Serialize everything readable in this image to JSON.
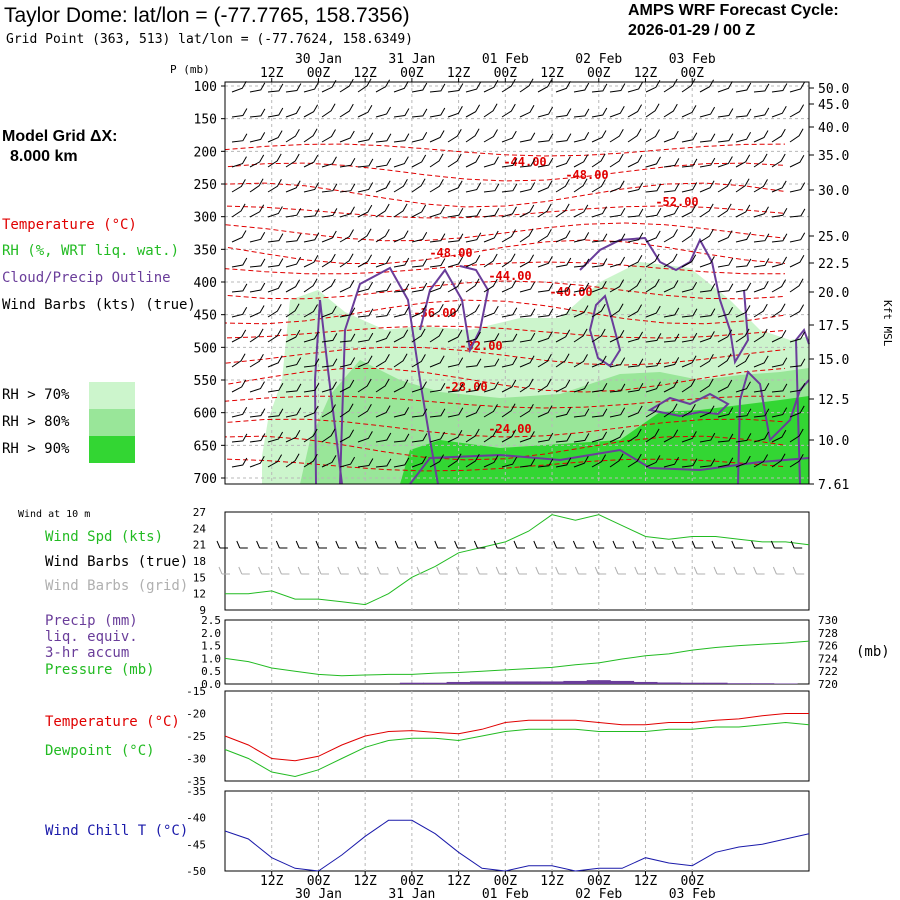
{
  "header": {
    "title": "Taylor Dome:  lat/lon = (-77.7765, 158.7356)",
    "grid_point": "Grid Point (363, 513) lat/lon = (-77.7624, 158.6349)",
    "cycle_line1": "AMPS WRF Forecast Cycle:",
    "cycle_line2": "2026-01-29 / 00  Z"
  },
  "sidebar": {
    "model_grid_line1": "Model Grid ΔX:",
    "model_grid_line2": "8.000 km",
    "legend_temperature": "Temperature (°C)",
    "legend_rh": "RH (%, WRT liq. wat.)",
    "legend_cloud": "Cloud/Precip Outline",
    "legend_wind": "Wind Barbs (kts) (true)",
    "rh_keys": [
      {
        "label": "RH > 70%",
        "color": "#ccf5cc"
      },
      {
        "label": "RH > 80%",
        "color": "#99e699"
      },
      {
        "label": "RH > 90%",
        "color": "#33d633"
      }
    ]
  },
  "colors": {
    "temperature": "#e00000",
    "rh_text": "#22bb22",
    "cloud": "#6a3d9a",
    "wind": "#000000",
    "wind_grid": "#b0b0b0",
    "windchill": "#1a1aaa",
    "grid": "#b8b8b8"
  },
  "chart_data": [
    {
      "type": "contour",
      "title": "Time-height section (temperature, RH, cloud outline, wind barbs)",
      "ylabel": "P (mb)",
      "y2label": "Kft MSL",
      "yticks": [
        "100",
        "150",
        "200",
        "250",
        "300",
        "350",
        "400",
        "450",
        "500",
        "550",
        "600",
        "650",
        "700"
      ],
      "y2ticks": [
        "50.0",
        "45.0",
        "40.0",
        "35.0",
        "30.0",
        "25.0",
        "22.5",
        "20.0",
        "17.5",
        "15.0",
        "12.5",
        "10.0",
        "7.61"
      ],
      "top_time_ticks": [
        "12Z",
        "00Z",
        "12Z",
        "00Z",
        "12Z",
        "00Z",
        "12Z",
        "00Z",
        "12Z",
        "00Z"
      ],
      "top_date_ticks": [
        "30 Jan",
        "31 Jan",
        "01 Feb",
        "02 Feb",
        "03 Feb"
      ],
      "contour_labels": [
        "-44.00",
        "-48.00",
        "-52.00",
        "-48.00",
        "-44.00",
        "-40.00",
        "-36.00",
        "-32.00",
        "-28.00",
        "-24.00"
      ]
    },
    {
      "type": "line",
      "title": "Wind at 10 m",
      "legend": [
        "Wind Spd (kts)",
        "Wind Barbs (true)",
        "Wind Barbs (grid)"
      ],
      "ylim": [
        9,
        27
      ],
      "yticks": [
        "27",
        "24",
        "21",
        "18",
        "15",
        "12",
        "9"
      ],
      "x_hours": [
        0,
        6,
        12,
        18,
        24,
        30,
        36,
        42,
        48,
        54,
        60,
        66,
        72,
        78,
        84,
        90,
        96,
        102,
        108,
        114,
        120,
        126,
        132,
        138,
        144,
        150
      ],
      "series": [
        {
          "name": "Wind Spd (kts)",
          "values": [
            12,
            12,
            12.5,
            11,
            11,
            10.5,
            10,
            12,
            15,
            17,
            19.5,
            20.5,
            21.5,
            23.5,
            26.5,
            25.5,
            26.5,
            24.5,
            22.5,
            22,
            22.5,
            22.5,
            22,
            21.5,
            21.5,
            21
          ]
        }
      ]
    },
    {
      "type": "line+bar",
      "legend": [
        "Precip (mm)",
        "liq. equiv.",
        "3-hr accum",
        "Pressure (mb)"
      ],
      "ylim_left": [
        0,
        2.5
      ],
      "yticks_left": [
        "2.5",
        "2.0",
        "1.5",
        "1.0",
        "0.5",
        "0.0"
      ],
      "ylim_right": [
        720,
        730
      ],
      "yticks_right": [
        "730",
        "728",
        "726",
        "724",
        "722",
        "720"
      ],
      "y2label": "(mb)",
      "series": [
        {
          "name": "Pressure (mb)",
          "values": [
            724,
            723.5,
            722.5,
            722,
            721.5,
            721.3,
            721.4,
            721.5,
            721.5,
            721.7,
            721.8,
            722,
            722.2,
            722.4,
            722.6,
            723,
            723.3,
            723.9,
            724.4,
            724.7,
            725.3,
            725.7,
            726,
            726.2,
            726.4,
            726.7
          ]
        },
        {
          "name": "Precip (mm)",
          "values": [
            0,
            0,
            0,
            0,
            0,
            0,
            0,
            0,
            0.05,
            0.05,
            0.08,
            0.1,
            0.1,
            0.1,
            0.1,
            0.12,
            0.15,
            0.12,
            0.08,
            0.06,
            0.05,
            0.05,
            0.03,
            0.03,
            0.02,
            0
          ]
        }
      ]
    },
    {
      "type": "line",
      "legend": [
        "Temperature (°C)",
        "Dewpoint (°C)"
      ],
      "ylim": [
        -35,
        -15
      ],
      "yticks": [
        "-15",
        "-20",
        "-25",
        "-30",
        "-35"
      ],
      "series": [
        {
          "name": "Temperature (°C)",
          "values": [
            -25,
            -27,
            -30,
            -30.5,
            -29.5,
            -27,
            -25,
            -24,
            -23.8,
            -24.2,
            -24.5,
            -23.5,
            -22,
            -21.5,
            -21.5,
            -21.5,
            -22,
            -22.5,
            -22.5,
            -22,
            -22,
            -21.5,
            -21.2,
            -20.5,
            -20,
            -20
          ]
        },
        {
          "name": "Dewpoint (°C)",
          "values": [
            -28,
            -30,
            -33,
            -34,
            -32.5,
            -30,
            -27.5,
            -26,
            -25.5,
            -25.5,
            -26,
            -25,
            -24,
            -23.5,
            -23.5,
            -23.5,
            -24,
            -24,
            -24,
            -23.5,
            -23.5,
            -23,
            -23,
            -22.5,
            -22,
            -22.5
          ]
        }
      ]
    },
    {
      "type": "line",
      "legend": [
        "Wind Chill T (°C)"
      ],
      "ylim": [
        -50,
        -35
      ],
      "yticks": [
        "-35",
        "-40",
        "-45",
        "-50"
      ],
      "series": [
        {
          "name": "Wind Chill T (°C)",
          "values": [
            -42.5,
            -44,
            -47.5,
            -49.5,
            -50,
            -47,
            -43.5,
            -40.5,
            -40.5,
            -43,
            -46.5,
            -49.5,
            -50,
            -49,
            -49,
            -50,
            -49.5,
            -49.5,
            -47.5,
            -48.5,
            -49,
            -46.5,
            -45.5,
            -45,
            -44,
            -43
          ]
        }
      ]
    }
  ],
  "bottom_axis": {
    "time_ticks": [
      "12Z",
      "00Z",
      "12Z",
      "00Z",
      "12Z",
      "00Z",
      "12Z",
      "00Z",
      "12Z",
      "00Z"
    ],
    "date_ticks": [
      "30 Jan",
      "31 Jan",
      "01 Feb",
      "02 Feb",
      "03 Feb"
    ]
  }
}
